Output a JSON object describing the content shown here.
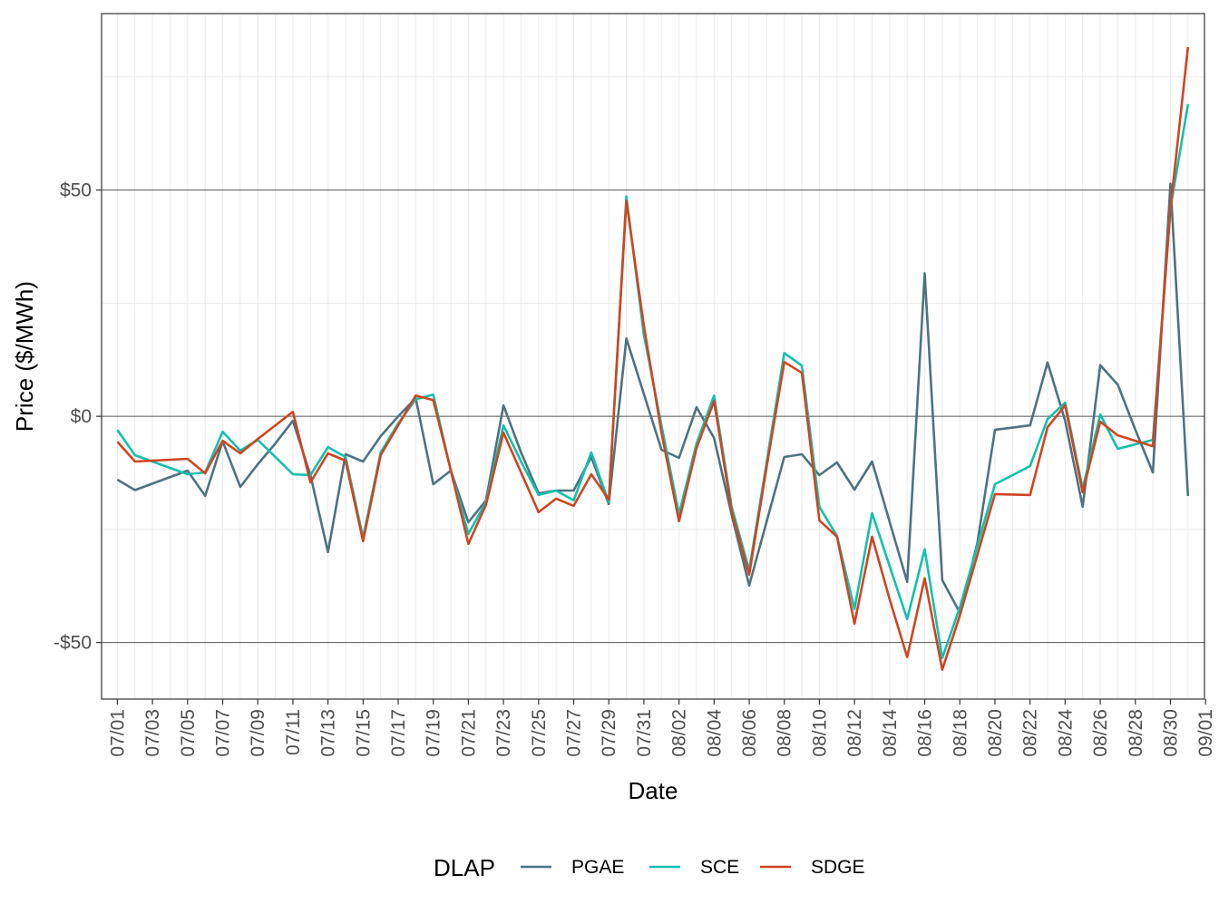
{
  "chart_data": {
    "type": "line",
    "xlabel": "Date",
    "ylabel": "Price ($/MWh)",
    "x_ticks": [
      "07/01",
      "07/03",
      "07/05",
      "07/07",
      "07/09",
      "07/11",
      "07/13",
      "07/15",
      "07/17",
      "07/19",
      "07/21",
      "07/23",
      "07/25",
      "07/27",
      "07/29",
      "07/31",
      "08/02",
      "08/04",
      "08/06",
      "08/08",
      "08/10",
      "08/12",
      "08/14",
      "08/16",
      "08/18",
      "08/20",
      "08/22",
      "08/24",
      "08/26",
      "08/28",
      "08/30",
      "09/01"
    ],
    "y_ticks": [
      {
        "value": -50,
        "label": "-$50"
      },
      {
        "value": 0,
        "label": "$0"
      },
      {
        "value": 50,
        "label": "$50"
      }
    ],
    "xlim": [
      "2023-06-30",
      "2023-09-01"
    ],
    "ylim": [
      -62.5,
      89
    ],
    "grid": true,
    "legend_position": "bottom",
    "legend_title": "DLAP",
    "colors": {
      "PGAE": "#4e7282",
      "SCE": "#12c0ad",
      "SDGE": "#cf4520"
    },
    "series": [
      {
        "name": "PGAE",
        "points": [
          [
            "2023-07-01",
            -14
          ],
          [
            "2023-07-02",
            -16.3
          ],
          [
            "2023-07-05",
            -12
          ],
          [
            "2023-07-06",
            -17.6
          ],
          [
            "2023-07-07",
            -5.5
          ],
          [
            "2023-07-08",
            -15.6
          ],
          [
            "2023-07-09",
            -10.6
          ],
          [
            "2023-07-10",
            -6
          ],
          [
            "2023-07-11",
            -1
          ],
          [
            "2023-07-12",
            -13
          ],
          [
            "2023-07-13",
            -30
          ],
          [
            "2023-07-14",
            -8.4
          ],
          [
            "2023-07-15",
            -10
          ],
          [
            "2023-07-16",
            -4.4
          ],
          [
            "2023-07-17",
            0
          ],
          [
            "2023-07-18",
            4
          ],
          [
            "2023-07-19",
            -15
          ],
          [
            "2023-07-20",
            -12
          ],
          [
            "2023-07-21",
            -23.4
          ],
          [
            "2023-07-22",
            -18.6
          ],
          [
            "2023-07-23",
            2.4
          ],
          [
            "2023-07-24",
            -8
          ],
          [
            "2023-07-25",
            -17
          ],
          [
            "2023-07-26",
            -16.4
          ],
          [
            "2023-07-27",
            -16.4
          ],
          [
            "2023-07-28",
            -9
          ],
          [
            "2023-07-29",
            -19.4
          ],
          [
            "2023-07-30",
            17.2
          ],
          [
            "2023-08-01",
            -7.4
          ],
          [
            "2023-08-02",
            -9.2
          ],
          [
            "2023-08-03",
            2
          ],
          [
            "2023-08-04",
            -4.8
          ],
          [
            "2023-08-05",
            -21.8
          ],
          [
            "2023-08-06",
            -37.4
          ],
          [
            "2023-08-08",
            -9
          ],
          [
            "2023-08-09",
            -8.4
          ],
          [
            "2023-08-10",
            -13
          ],
          [
            "2023-08-11",
            -10.2
          ],
          [
            "2023-08-12",
            -16.2
          ],
          [
            "2023-08-13",
            -10
          ],
          [
            "2023-08-15",
            -36.6
          ],
          [
            "2023-08-16",
            31.6
          ],
          [
            "2023-08-17",
            -36.2
          ],
          [
            "2023-08-18",
            -43.4
          ],
          [
            "2023-08-19",
            -28
          ],
          [
            "2023-08-20",
            -3
          ],
          [
            "2023-08-22",
            -2
          ],
          [
            "2023-08-23",
            11.9
          ],
          [
            "2023-08-24",
            -1
          ],
          [
            "2023-08-25",
            -20
          ],
          [
            "2023-08-26",
            11.3
          ],
          [
            "2023-08-27",
            7
          ],
          [
            "2023-08-28",
            -3
          ],
          [
            "2023-08-29",
            -12.4
          ],
          [
            "2023-08-30",
            51.4
          ],
          [
            "2023-08-31",
            -17.6
          ]
        ]
      },
      {
        "name": "SCE",
        "points": [
          [
            "2023-07-01",
            -3
          ],
          [
            "2023-07-02",
            -8.6
          ],
          [
            "2023-07-03",
            -10
          ],
          [
            "2023-07-05",
            -12.8
          ],
          [
            "2023-07-06",
            -12.4
          ],
          [
            "2023-07-07",
            -3.4
          ],
          [
            "2023-07-08",
            -7.6
          ],
          [
            "2023-07-09",
            -5.2
          ],
          [
            "2023-07-10",
            -9
          ],
          [
            "2023-07-11",
            -12.8
          ],
          [
            "2023-07-12",
            -13
          ],
          [
            "2023-07-13",
            -6.8
          ],
          [
            "2023-07-14",
            -9
          ],
          [
            "2023-07-15",
            -26.8
          ],
          [
            "2023-07-16",
            -8
          ],
          [
            "2023-07-17",
            -1.6
          ],
          [
            "2023-07-18",
            3.8
          ],
          [
            "2023-07-19",
            4.8
          ],
          [
            "2023-07-20",
            -12
          ],
          [
            "2023-07-21",
            -26
          ],
          [
            "2023-07-22",
            -19
          ],
          [
            "2023-07-23",
            -2
          ],
          [
            "2023-07-24",
            -10
          ],
          [
            "2023-07-25",
            -17.4
          ],
          [
            "2023-07-26",
            -16.4
          ],
          [
            "2023-07-27",
            -18.6
          ],
          [
            "2023-07-28",
            -8
          ],
          [
            "2023-07-29",
            -19
          ],
          [
            "2023-07-30",
            48.6
          ],
          [
            "2023-07-31",
            18
          ],
          [
            "2023-08-01",
            -2
          ],
          [
            "2023-08-02",
            -21.6
          ],
          [
            "2023-08-03",
            -6
          ],
          [
            "2023-08-04",
            4.6
          ],
          [
            "2023-08-05",
            -20
          ],
          [
            "2023-08-06",
            -34
          ],
          [
            "2023-08-07",
            -10
          ],
          [
            "2023-08-08",
            14
          ],
          [
            "2023-08-09",
            11.2
          ],
          [
            "2023-08-10",
            -20
          ],
          [
            "2023-08-11",
            -26.4
          ],
          [
            "2023-08-12",
            -42.6
          ],
          [
            "2023-08-13",
            -21.4
          ],
          [
            "2023-08-15",
            -44.8
          ],
          [
            "2023-08-16",
            -29.4
          ],
          [
            "2023-08-17",
            -53.4
          ],
          [
            "2023-08-18",
            -42.2
          ],
          [
            "2023-08-20",
            -15
          ],
          [
            "2023-08-22",
            -11
          ],
          [
            "2023-08-23",
            -0.6
          ],
          [
            "2023-08-24",
            3
          ],
          [
            "2023-08-25",
            -16
          ],
          [
            "2023-08-26",
            0.4
          ],
          [
            "2023-08-27",
            -7.2
          ],
          [
            "2023-08-29",
            -5.2
          ],
          [
            "2023-08-30",
            46
          ],
          [
            "2023-08-31",
            69
          ]
        ]
      },
      {
        "name": "SDGE",
        "points": [
          [
            "2023-07-01",
            -5.6
          ],
          [
            "2023-07-02",
            -10
          ],
          [
            "2023-07-05",
            -9.4
          ],
          [
            "2023-07-06",
            -12.6
          ],
          [
            "2023-07-07",
            -5.4
          ],
          [
            "2023-07-08",
            -8.2
          ],
          [
            "2023-07-09",
            -5
          ],
          [
            "2023-07-10",
            -2
          ],
          [
            "2023-07-11",
            1
          ],
          [
            "2023-07-12",
            -14.6
          ],
          [
            "2023-07-13",
            -8.2
          ],
          [
            "2023-07-14",
            -9.8
          ],
          [
            "2023-07-15",
            -27.6
          ],
          [
            "2023-07-16",
            -8.6
          ],
          [
            "2023-07-17",
            -2
          ],
          [
            "2023-07-18",
            4.6
          ],
          [
            "2023-07-19",
            3.6
          ],
          [
            "2023-07-20",
            -12
          ],
          [
            "2023-07-21",
            -28.2
          ],
          [
            "2023-07-22",
            -19.6
          ],
          [
            "2023-07-23",
            -3.6
          ],
          [
            "2023-07-24",
            -12.4
          ],
          [
            "2023-07-25",
            -21.2
          ],
          [
            "2023-07-26",
            -18.2
          ],
          [
            "2023-07-27",
            -19.8
          ],
          [
            "2023-07-28",
            -12.8
          ],
          [
            "2023-07-29",
            -18.4
          ],
          [
            "2023-07-30",
            47.6
          ],
          [
            "2023-07-31",
            20
          ],
          [
            "2023-08-01",
            -3.6
          ],
          [
            "2023-08-02",
            -23.2
          ],
          [
            "2023-08-03",
            -7
          ],
          [
            "2023-08-04",
            3.4
          ],
          [
            "2023-08-05",
            -21
          ],
          [
            "2023-08-06",
            -35
          ],
          [
            "2023-08-07",
            -11
          ],
          [
            "2023-08-08",
            12
          ],
          [
            "2023-08-09",
            9.6
          ],
          [
            "2023-08-10",
            -23
          ],
          [
            "2023-08-11",
            -26.6
          ],
          [
            "2023-08-12",
            -45.8
          ],
          [
            "2023-08-13",
            -26.6
          ],
          [
            "2023-08-14",
            -40.4
          ],
          [
            "2023-08-15",
            -53.2
          ],
          [
            "2023-08-16",
            -35.8
          ],
          [
            "2023-08-17",
            -56
          ],
          [
            "2023-08-18",
            -44
          ],
          [
            "2023-08-20",
            -17.2
          ],
          [
            "2023-08-22",
            -17.4
          ],
          [
            "2023-08-23",
            -2.4
          ],
          [
            "2023-08-24",
            2.4
          ],
          [
            "2023-08-25",
            -16.8
          ],
          [
            "2023-08-26",
            -1.2
          ],
          [
            "2023-08-27",
            -4.2
          ],
          [
            "2023-08-29",
            -6.6
          ],
          [
            "2023-08-30",
            46
          ],
          [
            "2023-08-31",
            81.6
          ]
        ]
      }
    ]
  }
}
